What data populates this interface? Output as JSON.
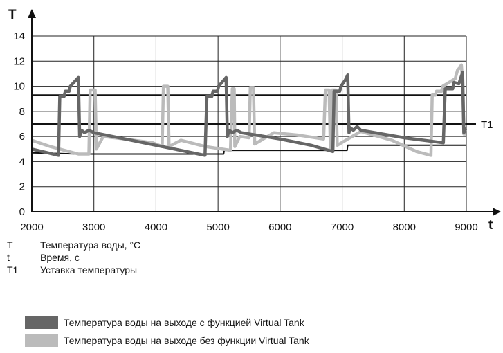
{
  "chart_data": {
    "type": "line",
    "y_axis_symbol": "T",
    "x_axis_symbol": "t",
    "xlim": [
      2000,
      9000
    ],
    "ylim": [
      0,
      14
    ],
    "x_ticks": [
      "2000",
      "3000",
      "4000",
      "5000",
      "6000",
      "7000",
      "8000",
      "9000"
    ],
    "y_ticks": [
      "0",
      "2",
      "4",
      "6",
      "8",
      "10",
      "12",
      "14"
    ],
    "grid": true,
    "reference_lines": [
      {
        "label": "T1",
        "y": 7
      },
      {
        "y": 9.3
      }
    ],
    "series": [
      {
        "name": "Температура воды на выходе с функцией Virtual Tank",
        "color": "#666666",
        "points": [
          [
            2000,
            5.0
          ],
          [
            2430,
            4.5
          ],
          [
            2450,
            9.2
          ],
          [
            2520,
            9.2
          ],
          [
            2540,
            9.6
          ],
          [
            2600,
            9.6
          ],
          [
            2620,
            10.0
          ],
          [
            2750,
            10.7
          ],
          [
            2770,
            6.0
          ],
          [
            2800,
            6.5
          ],
          [
            2850,
            6.3
          ],
          [
            2920,
            6.5
          ],
          [
            3000,
            6.3
          ],
          [
            3300,
            6.0
          ],
          [
            3800,
            5.5
          ],
          [
            4300,
            5.0
          ],
          [
            4790,
            4.5
          ],
          [
            4820,
            9.2
          ],
          [
            4900,
            9.2
          ],
          [
            4920,
            9.6
          ],
          [
            4990,
            9.6
          ],
          [
            5010,
            10.0
          ],
          [
            5130,
            10.7
          ],
          [
            5150,
            6.0
          ],
          [
            5180,
            6.5
          ],
          [
            5230,
            6.3
          ],
          [
            5300,
            6.5
          ],
          [
            5380,
            6.3
          ],
          [
            6000,
            5.8
          ],
          [
            6500,
            5.3
          ],
          [
            6850,
            4.8
          ],
          [
            6870,
            9.6
          ],
          [
            6960,
            9.6
          ],
          [
            6980,
            10.0
          ],
          [
            7050,
            10.5
          ],
          [
            7090,
            10.9
          ],
          [
            7110,
            6.3
          ],
          [
            7130,
            6.7
          ],
          [
            7180,
            6.5
          ],
          [
            7240,
            6.8
          ],
          [
            7300,
            6.5
          ],
          [
            8000,
            5.9
          ],
          [
            8630,
            5.5
          ],
          [
            8660,
            9.8
          ],
          [
            8780,
            9.8
          ],
          [
            8800,
            10.3
          ],
          [
            8880,
            10.2
          ],
          [
            8940,
            11.1
          ],
          [
            8960,
            6.3
          ],
          [
            8990,
            6.6
          ],
          [
            9000,
            6.6
          ]
        ]
      },
      {
        "name": "Температура воды на выходе без функции Virtual Tank",
        "color": "#bbbbbb",
        "points": [
          [
            2000,
            5.7
          ],
          [
            2300,
            5.2
          ],
          [
            2750,
            4.6
          ],
          [
            2920,
            4.6
          ],
          [
            2940,
            9.7
          ],
          [
            3020,
            9.7
          ],
          [
            3040,
            5.0
          ],
          [
            3150,
            6.0
          ],
          [
            3500,
            5.8
          ],
          [
            3950,
            5.5
          ],
          [
            4100,
            5.2
          ],
          [
            4120,
            10.0
          ],
          [
            4190,
            10.0
          ],
          [
            4210,
            5.2
          ],
          [
            4400,
            5.7
          ],
          [
            4800,
            5.2
          ],
          [
            5200,
            4.9
          ],
          [
            5230,
            9.8
          ],
          [
            5260,
            9.8
          ],
          [
            5270,
            5.2
          ],
          [
            5350,
            6.0
          ],
          [
            5500,
            5.9
          ],
          [
            5520,
            9.9
          ],
          [
            5570,
            9.9
          ],
          [
            5590,
            5.4
          ],
          [
            5900,
            6.3
          ],
          [
            6300,
            6.1
          ],
          [
            6700,
            5.8
          ],
          [
            6730,
            9.7
          ],
          [
            6790,
            9.7
          ],
          [
            6810,
            5.0
          ],
          [
            6840,
            9.7
          ],
          [
            6900,
            9.7
          ],
          [
            6920,
            5.3
          ],
          [
            7300,
            6.4
          ],
          [
            7800,
            5.7
          ],
          [
            8200,
            4.8
          ],
          [
            8430,
            4.5
          ],
          [
            8450,
            9.3
          ],
          [
            8500,
            9.3
          ],
          [
            8520,
            9.6
          ],
          [
            8600,
            9.6
          ],
          [
            8620,
            10.0
          ],
          [
            8820,
            10.6
          ],
          [
            8860,
            11.3
          ],
          [
            8900,
            11.5
          ],
          [
            8920,
            11.7
          ],
          [
            8940,
            10.5
          ],
          [
            8960,
            6.2
          ],
          [
            9000,
            6.2
          ]
        ]
      },
      {
        "color": "#111111",
        "points": [
          [
            2000,
            4.7
          ],
          [
            2800,
            4.6
          ],
          [
            5090,
            4.6
          ],
          [
            5100,
            4.9
          ],
          [
            7080,
            4.9
          ],
          [
            7090,
            5.3
          ],
          [
            9000,
            5.3
          ]
        ]
      }
    ]
  },
  "notes": [
    {
      "symbol": "T",
      "text": "Температура воды, °C"
    },
    {
      "symbol": "t",
      "text": "Время, с"
    },
    {
      "symbol": "T1",
      "text": "Уставка температуры"
    }
  ],
  "legend": [
    {
      "text": "Температура воды на выходе с функцией Virtual Tank",
      "color": "#666666"
    },
    {
      "text": "Температура воды на выходе без функции Virtual Tank",
      "color": "#bbbbbb"
    }
  ]
}
